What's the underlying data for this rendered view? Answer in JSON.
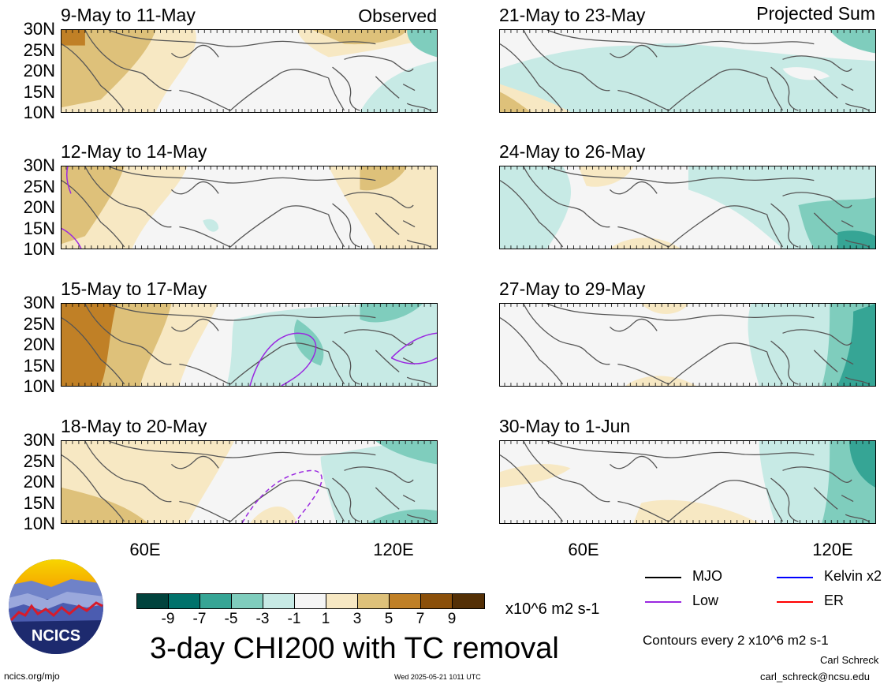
{
  "colors": {
    "scale": [
      "#01433d",
      "#01726b",
      "#36a595",
      "#7fcdbd",
      "#c7eae5",
      "#f5f5f5",
      "#f7e8c3",
      "#deC17a",
      "#c08026",
      "#8b500a",
      "#543006"
    ],
    "mjo": "#000000",
    "kelvin": "#0000ff",
    "low": "#9a28e0",
    "er": "#ff0000"
  },
  "tags": {
    "left": "Observed",
    "right": "Projected Sum"
  },
  "panels": [
    {
      "title": "9-May to 11-May"
    },
    {
      "title": "21-May to 23-May"
    },
    {
      "title": "12-May to 14-May"
    },
    {
      "title": "24-May to 26-May"
    },
    {
      "title": "15-May to 17-May"
    },
    {
      "title": "27-May to 29-May"
    },
    {
      "title": "18-May to 20-May"
    },
    {
      "title": "30-May to 1-Jun"
    }
  ],
  "lat_labels": [
    "30N",
    "25N",
    "20N",
    "15N",
    "10N"
  ],
  "lon_labels": [
    "60E",
    "120E"
  ],
  "colorbar": {
    "ticks": [
      "-9",
      "-7",
      "-5",
      "-3",
      "-1",
      "1",
      "3",
      "5",
      "7",
      "9"
    ],
    "units": "x10^6 m2 s-1"
  },
  "main_title": "3-day CHI200 with TC removal",
  "legend": {
    "mjo": "MJO",
    "kelvin": "Kelvin x2",
    "low": "Low",
    "er": "ER",
    "contours_note": "Contours every 2 x10^6 m2 s-1"
  },
  "logo_text": "NCICS",
  "footer": {
    "left": "ncics.org/mjo",
    "center": "Wed 2025-05-21 1011 UTC",
    "author": "Carl Schreck",
    "email": "carl_schreck@ncsu.edu"
  }
}
